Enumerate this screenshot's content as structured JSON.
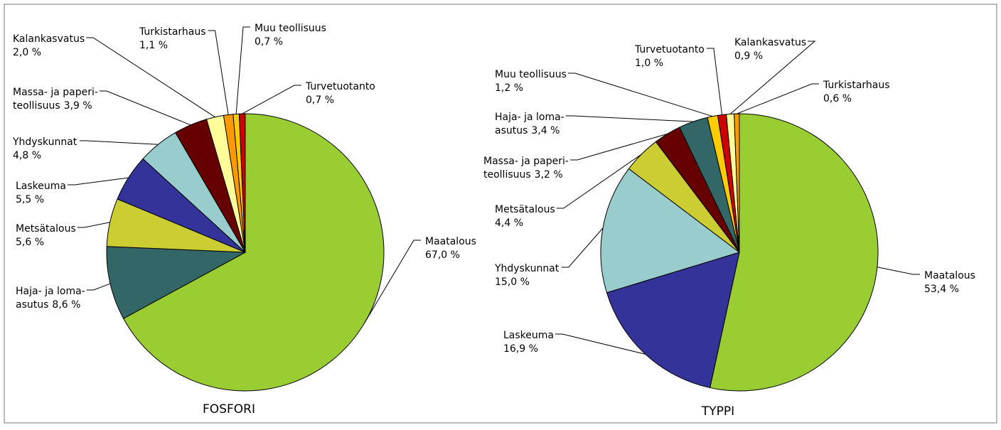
{
  "chart_data": [
    {
      "type": "pie",
      "title": "FOSFORI",
      "categories": [
        "Maatalous",
        "Haja- ja loma-\nasutus",
        "Metsätalous",
        "Laskeuma",
        "Yhdyskunnat",
        "Massa- ja paperi-\nteollisuus",
        "Kalankasvatus",
        "Turkistarhaus",
        "Muu teollisuus",
        "Turvetuotanto"
      ],
      "values": [
        67.0,
        8.6,
        5.6,
        5.5,
        4.8,
        3.9,
        2.0,
        1.1,
        0.7,
        0.7
      ],
      "value_labels": [
        "67,0 %",
        "8,6 %",
        "5,6 %",
        "5,5 %",
        "4,8 %",
        "3,9 %",
        "2,0 %",
        "1,1 %",
        "0,7 %",
        "0,7 %"
      ],
      "colors": [
        "#9acd32",
        "#336666",
        "#cccc33",
        "#333399",
        "#99cccc",
        "#660000",
        "#ffff99",
        "#ff9900",
        "#ffcc00",
        "#cc0000"
      ]
    },
    {
      "type": "pie",
      "title": "TYPPI",
      "categories": [
        "Maatalous",
        "Laskeuma",
        "Yhdyskunnat",
        "Metsätalous",
        "Massa- ja paperi-\nteollisuus",
        "Haja- ja loma-\nasutus",
        "Muu teollisuus",
        "Turvetuotanto",
        "Kalankasvatus",
        "Turkistarhaus"
      ],
      "values": [
        53.4,
        16.9,
        15.0,
        4.4,
        3.2,
        3.4,
        1.2,
        1.0,
        0.9,
        0.6
      ],
      "value_labels": [
        "53,4 %",
        "16,9 %",
        "15,0 %",
        "4,4 %",
        "3,2 %",
        "3,4 %",
        "1,2 %",
        "1,0 %",
        "0,9 %",
        "0,6 %"
      ],
      "colors": [
        "#9acd32",
        "#333399",
        "#99cccc",
        "#cccc33",
        "#660000",
        "#336666",
        "#ffcc00",
        "#cc0000",
        "#ffff99",
        "#ff9900"
      ]
    }
  ]
}
